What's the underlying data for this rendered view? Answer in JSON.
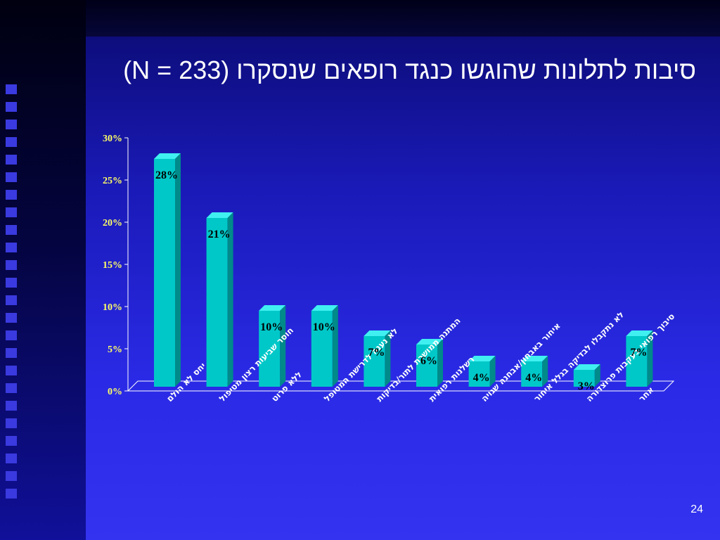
{
  "slide": {
    "title": "סיבות לתלונות שהוגשו כנגד רופאים שנסקרו (233 = N)",
    "page_number": "24"
  },
  "colors": {
    "bar_front": "#00c8c8",
    "bar_top": "#40f0f0",
    "bar_side": "#008a8a",
    "axis": "#ffffff",
    "tick_label": "#ffff66"
  },
  "chart_data": {
    "type": "bar",
    "title": "",
    "xlabel": "",
    "ylabel": "",
    "ylim": [
      0,
      30
    ],
    "y_ticks": [
      0,
      5,
      10,
      15,
      20,
      25,
      30
    ],
    "y_tick_labels": [
      "0%",
      "5%",
      "10%",
      "15%",
      "20%",
      "25%",
      "30%"
    ],
    "grid": false,
    "categories": [
      "יחס לא הולם",
      "חוסר שביעות רצון מטיפול",
      "ללא פרוט",
      "לא נענה לדרישת המטופל",
      "המתנה ממושכת לתור/בדיקות",
      "רשלנות רפואית",
      "איחור באבחון/אבחנה שגויה",
      "לא נתקבלו לבדיקה בגלל איחור",
      "סיבוך רפואי בעקבות פרוצדורה",
      "אחר"
    ],
    "values": [
      28,
      21,
      10,
      10,
      7,
      6,
      4,
      4,
      3,
      7
    ],
    "data_labels": [
      "28%",
      "21%",
      "10%",
      "10%",
      "7%",
      "6%",
      "4%",
      "4%",
      "3%",
      "7%"
    ]
  }
}
